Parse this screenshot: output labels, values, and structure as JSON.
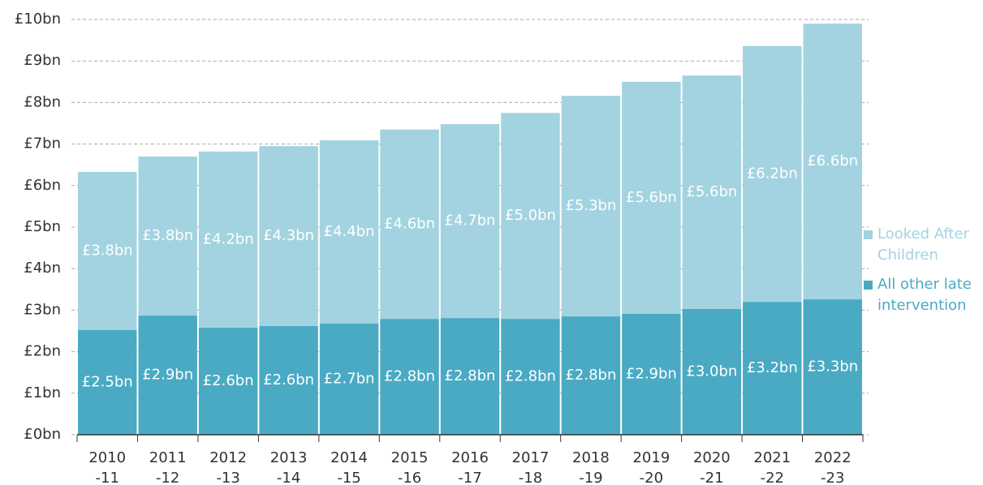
{
  "chart_data": {
    "type": "stacked_bar",
    "categories": [
      "2010-11",
      "2011-12",
      "2012-13",
      "2013-14",
      "2014-15",
      "2015-16",
      "2016-17",
      "2017-18",
      "2018-19",
      "2019-20",
      "2020-21",
      "2021-22",
      "2022-23"
    ],
    "series": [
      {
        "name": "All other late intervention",
        "color": "#4aaac4",
        "values": [
          2.52,
          2.87,
          2.58,
          2.62,
          2.68,
          2.79,
          2.81,
          2.79,
          2.85,
          2.91,
          3.03,
          3.2,
          3.26
        ],
        "value_labels": [
          "£2.5bn",
          "£2.9bn",
          "£2.6bn",
          "£2.6bn",
          "£2.7bn",
          "£2.8bn",
          "£2.8bn",
          "£2.8bn",
          "£2.8bn",
          "£2.9bn",
          "£3.0bn",
          "£3.2bn",
          "£3.3bn"
        ]
      },
      {
        "name": "Looked After Children",
        "color": "#a3d3e0",
        "values": [
          3.81,
          3.83,
          4.24,
          4.33,
          4.41,
          4.56,
          4.67,
          4.96,
          5.31,
          5.59,
          5.62,
          6.16,
          6.64
        ],
        "value_labels": [
          "£3.8bn",
          "£3.8bn",
          "£4.2bn",
          "£4.3bn",
          "£4.4bn",
          "£4.6bn",
          "£4.7bn",
          "£5.0bn",
          "£5.3bn",
          "£5.6bn",
          "£5.6bn",
          "£6.2bn",
          "£6.6bn"
        ]
      }
    ],
    "ylim": [
      0,
      10
    ],
    "yticks": [
      {
        "value": 0,
        "label": "£0bn"
      },
      {
        "value": 1,
        "label": "£1bn"
      },
      {
        "value": 2,
        "label": "£2bn"
      },
      {
        "value": 3,
        "label": "£3bn"
      },
      {
        "value": 4,
        "label": "£4bn"
      },
      {
        "value": 5,
        "label": "£5bn"
      },
      {
        "value": 6,
        "label": "£6bn"
      },
      {
        "value": 7,
        "label": "£7bn"
      },
      {
        "value": 8,
        "label": "£8bn"
      },
      {
        "value": 9,
        "label": "£9bn"
      },
      {
        "value": 10,
        "label": "£10bn"
      }
    ],
    "grid": true,
    "legend": "right"
  }
}
